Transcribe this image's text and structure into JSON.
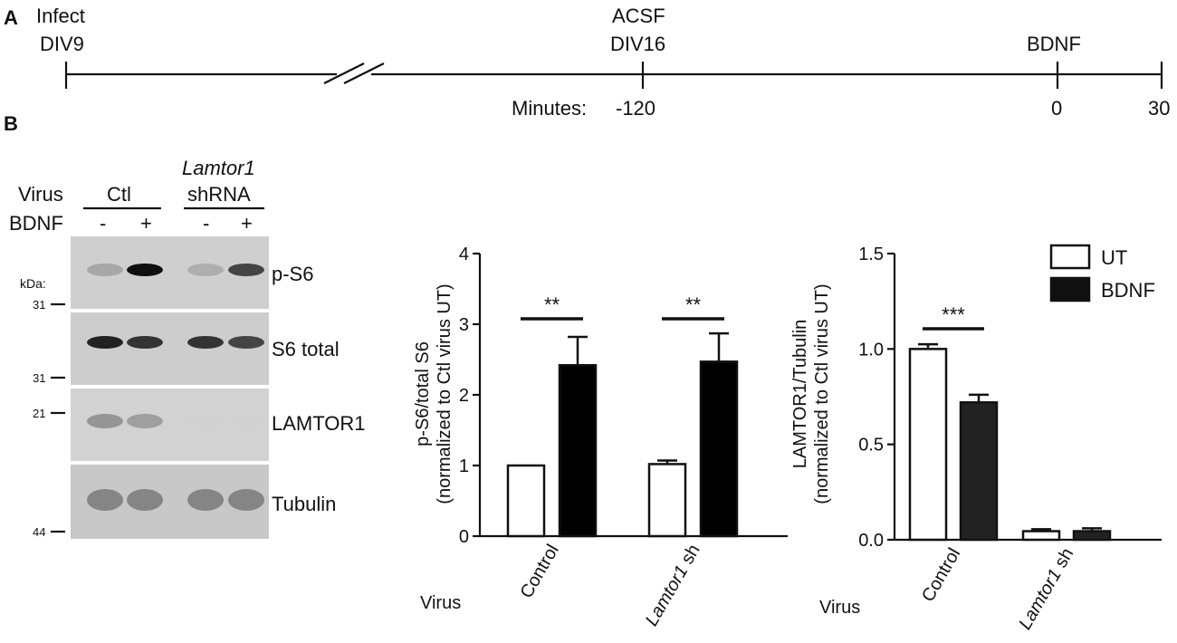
{
  "panel_a": {
    "label": "A",
    "events": [
      {
        "top": "Infect",
        "bottom": "DIV9"
      },
      {
        "top": "ACSF",
        "bottom": "DIV16"
      },
      {
        "top": "",
        "bottom": "BDNF"
      }
    ],
    "minutes_label": "Minutes:",
    "ticks": [
      "-120",
      "0",
      "30"
    ]
  },
  "panel_b": {
    "label": "B",
    "blot": {
      "virus_label": "Virus",
      "bdnf_label": "BDNF",
      "group_ctl": "Ctl",
      "group_sh_top": "Lamtor1",
      "group_sh_bottom": "shRNA",
      "lane_signs": [
        "-",
        "+",
        "-",
        "+"
      ],
      "kda_label": "kDa:",
      "markers": [
        "31",
        "31",
        "21",
        "44"
      ],
      "bands": [
        "p-S6",
        "S6 total",
        "LAMTOR1",
        "Tubulin"
      ],
      "intensities": {
        "p-S6": [
          0.45,
          1.0,
          0.4,
          0.85
        ],
        "S6 total": [
          0.95,
          0.9,
          0.9,
          0.85
        ],
        "LAMTOR1": [
          0.55,
          0.5,
          0.03,
          0.03
        ],
        "Tubulin": [
          0.6,
          0.6,
          0.6,
          0.6
        ]
      }
    }
  },
  "chart_data": [
    {
      "type": "bar",
      "ylabel_line1": "p-S6/total S6",
      "ylabel_line2": "(normalized to Ctl virus UT)",
      "xaxis_prefix": "Virus",
      "categories": [
        "Control",
        "Lamtor1 sh"
      ],
      "ylim": [
        0,
        4
      ],
      "yticks": [
        "0",
        "1",
        "2",
        "3",
        "4"
      ],
      "series": [
        {
          "name": "UT",
          "values": [
            1.0,
            1.02
          ],
          "errors": [
            0.0,
            0.05
          ]
        },
        {
          "name": "BDNF",
          "values": [
            2.42,
            2.47
          ],
          "errors": [
            0.4,
            0.4
          ]
        }
      ],
      "significance": [
        "**",
        "**"
      ],
      "colors": {
        "UT": "#ffffff",
        "BDNF": "#000000"
      }
    },
    {
      "type": "bar",
      "ylabel_line1": "LAMTOR1/Tubulin",
      "ylabel_line2": "(normalized to Ctl virus UT)",
      "xaxis_prefix": "Virus",
      "categories": [
        "Control",
        "Lamtor1 sh"
      ],
      "ylim": [
        0,
        1.5
      ],
      "yticks": [
        "0.0",
        "0.5",
        "1.0",
        "1.5"
      ],
      "series": [
        {
          "name": "UT",
          "values": [
            1.0,
            0.045
          ],
          "errors": [
            0.025,
            0.01
          ]
        },
        {
          "name": "BDNF",
          "values": [
            0.72,
            0.045
          ],
          "errors": [
            0.04,
            0.015
          ]
        }
      ],
      "significance": [
        "***",
        ""
      ],
      "legend": [
        "UT",
        "BDNF"
      ],
      "legend_position": "top-right",
      "colors": {
        "UT": "#ffffff",
        "BDNF": "#000000"
      }
    }
  ]
}
